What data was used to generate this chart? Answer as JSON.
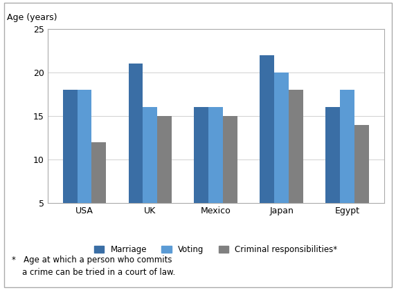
{
  "categories": [
    "USA",
    "UK",
    "Mexico",
    "Japan",
    "Egypt"
  ],
  "series": {
    "Marriage": [
      18,
      21,
      16,
      22,
      16
    ],
    "Voting": [
      18,
      16,
      16,
      20,
      18
    ],
    "Criminal responsibilities*": [
      12,
      15,
      15,
      18,
      14
    ]
  },
  "colors": {
    "Marriage": "#3A6EA5",
    "Voting": "#5B9BD5",
    "Criminal responsibilities*": "#808080"
  },
  "ylabel": "Age (years)",
  "ylim": [
    5,
    25
  ],
  "yticks": [
    5,
    10,
    15,
    20,
    25
  ],
  "footnote": "*   Age at which a person who commits\n    a crime can be tried in a court of law.",
  "legend_labels": [
    "Marriage",
    "Voting",
    "Criminal responsibilities*"
  ],
  "bar_width": 0.22
}
